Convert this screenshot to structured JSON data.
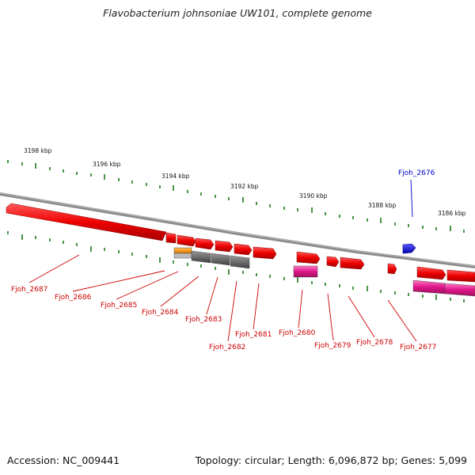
{
  "title": "Flavobacterium johnsoniae UW101, complete genome",
  "footer": {
    "accession": "Accession: NC_009441",
    "summary": "Topology: circular; Length: 6,096,872 bp; Genes: 5,099"
  },
  "scale_labels": [
    "3198 kbp",
    "3196 kbp",
    "3194 kbp",
    "3192 kbp",
    "3190 kbp",
    "3188 kbp",
    "3186 kbp"
  ],
  "gene_labels": [
    {
      "text": "Fjoh_2676",
      "color": "#0000cc"
    },
    {
      "text": "Fjoh_2687",
      "color": "#cc0000"
    },
    {
      "text": "Fjoh_2686",
      "color": "#cc0000"
    },
    {
      "text": "Fjoh_2685",
      "color": "#cc0000"
    },
    {
      "text": "Fjoh_2684",
      "color": "#cc0000"
    },
    {
      "text": "Fjoh_2683",
      "color": "#cc0000"
    },
    {
      "text": "Fjoh_2682",
      "color": "#cc0000"
    },
    {
      "text": "Fjoh_2681",
      "color": "#cc0000"
    },
    {
      "text": "Fjoh_2680",
      "color": "#cc0000"
    },
    {
      "text": "Fjoh_2679",
      "color": "#cc0000"
    },
    {
      "text": "Fjoh_2678",
      "color": "#cc0000"
    },
    {
      "text": "Fjoh_2677",
      "color": "#cc0000"
    }
  ],
  "colors": {
    "gene": "#e60000",
    "gene_reverse_strand": "#0000dd",
    "rna_magenta": "#e0168a",
    "pseudo_gray": "#6d6d6d",
    "orange": "#f08a10",
    "backbone": "#8a8a8a",
    "ticks": "#1a7a1a"
  }
}
